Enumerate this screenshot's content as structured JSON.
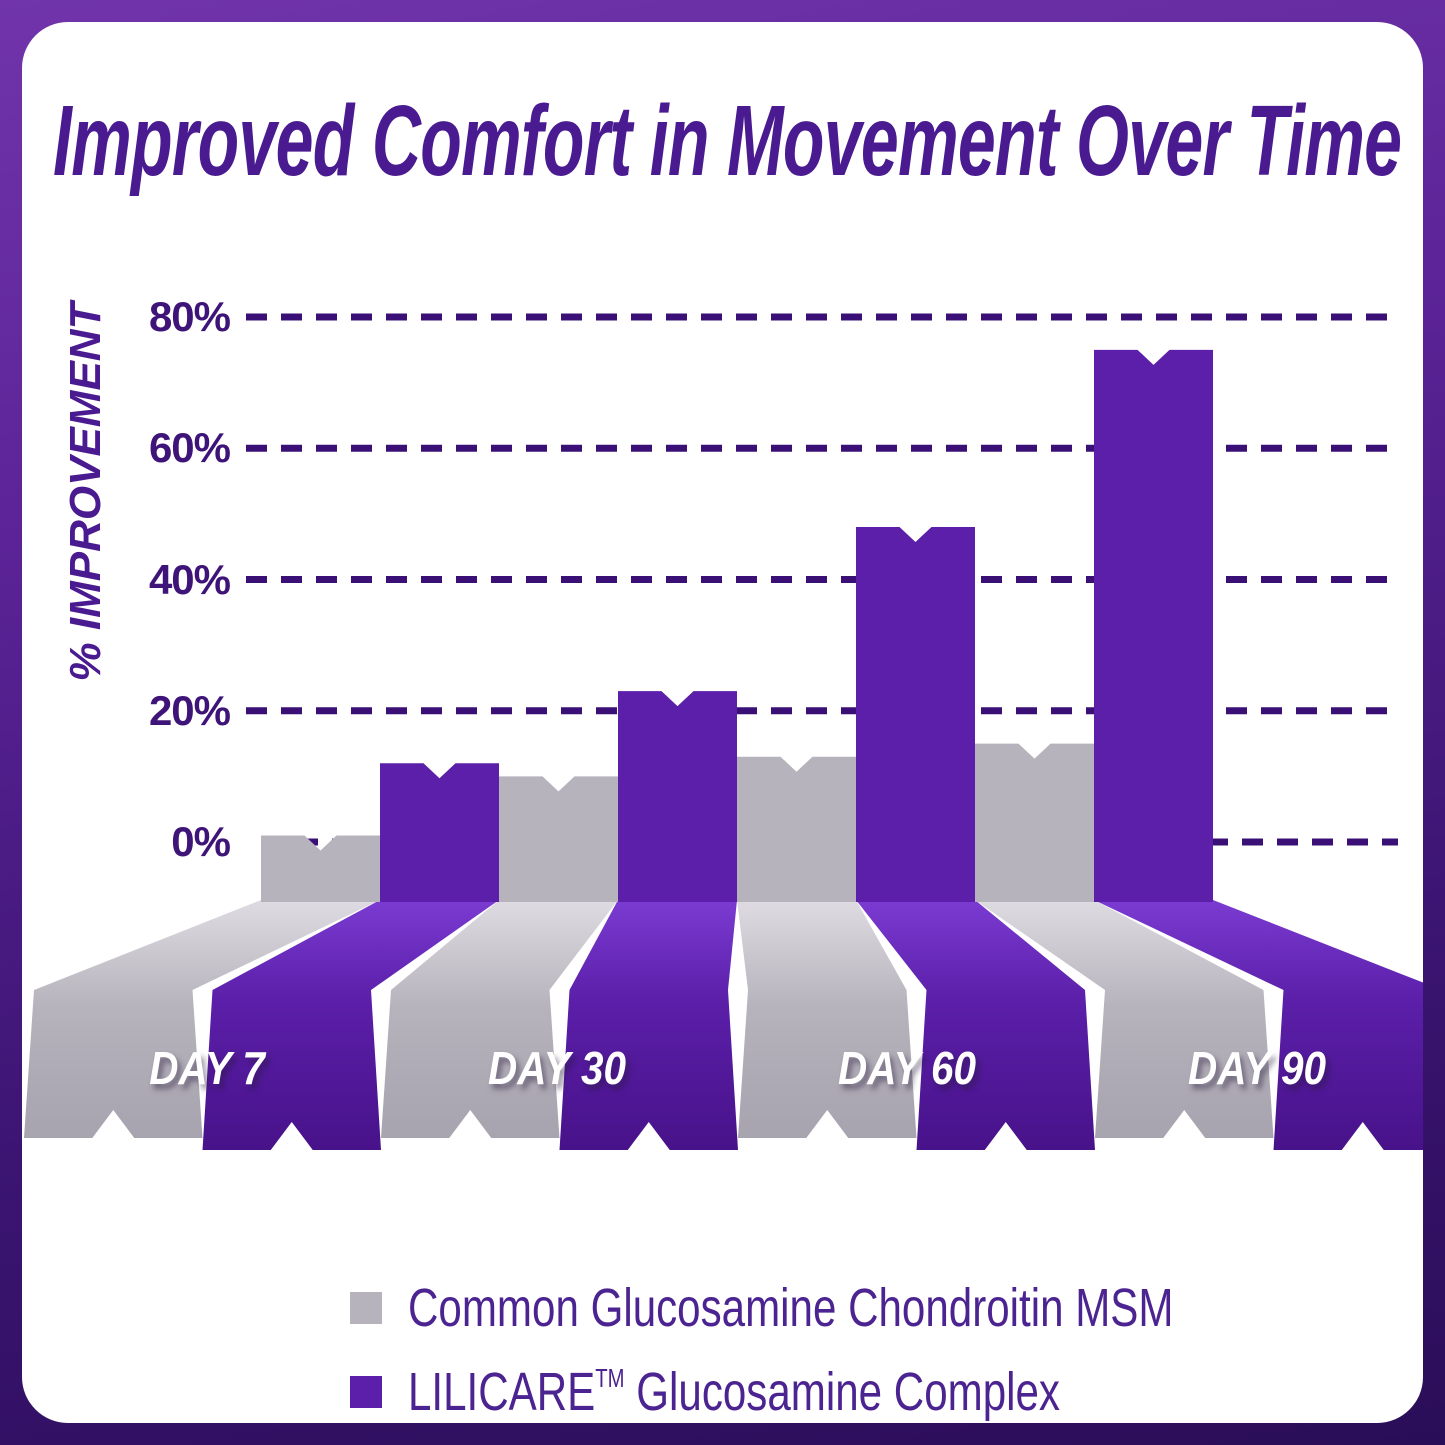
{
  "chart_data": {
    "type": "bar",
    "title": "Improved Comfort in Movement Over Time",
    "y_axis_title": "% IMPROVEMENT",
    "categories": [
      "DAY 7",
      "DAY 30",
      "DAY 60",
      "DAY 90"
    ],
    "series": [
      {
        "name": "Common Glucosamine Chondroitin MSM",
        "key": "gray",
        "values": [
          1,
          10,
          13,
          15
        ]
      },
      {
        "name": "LILICARE™ Glucosamine Complex",
        "key": "purple",
        "values": [
          12,
          23,
          48,
          75
        ]
      }
    ],
    "yticks": [
      80,
      60,
      40,
      20,
      0
    ],
    "ytick_suffix": "%",
    "ylim": [
      0,
      80
    ],
    "gridlines": "dashed",
    "legend_position": "bottom",
    "style": "pseudo-3d flared ribbon bars with notched tops"
  },
  "legend": {
    "items": [
      {
        "label": "Common Glucosamine Chondroitin MSM",
        "swatch": "#b7b3bc"
      },
      {
        "brand": "LILICARE",
        "sup": "TM",
        "rest": " Glucosamine Complex",
        "swatch": "#5b1fa9"
      }
    ]
  },
  "colors": {
    "frame_top": "#7134ab",
    "frame_bottom": "#2a0d58",
    "card": "#ffffff",
    "title": "#4a1b90",
    "axis_text": "#3f1478",
    "grid": "#3a1076",
    "bar_gray": "#b7b3bc",
    "bar_purple": "#5b1fa9",
    "skirt_gray_light": "#dedbe2",
    "skirt_gray_dark": "#a7a3af",
    "skirt_purple_light": "#7b3bd2",
    "skirt_purple_dark": "#48128a",
    "day_label": "#ffffff",
    "legend_text": "#4c2491"
  }
}
